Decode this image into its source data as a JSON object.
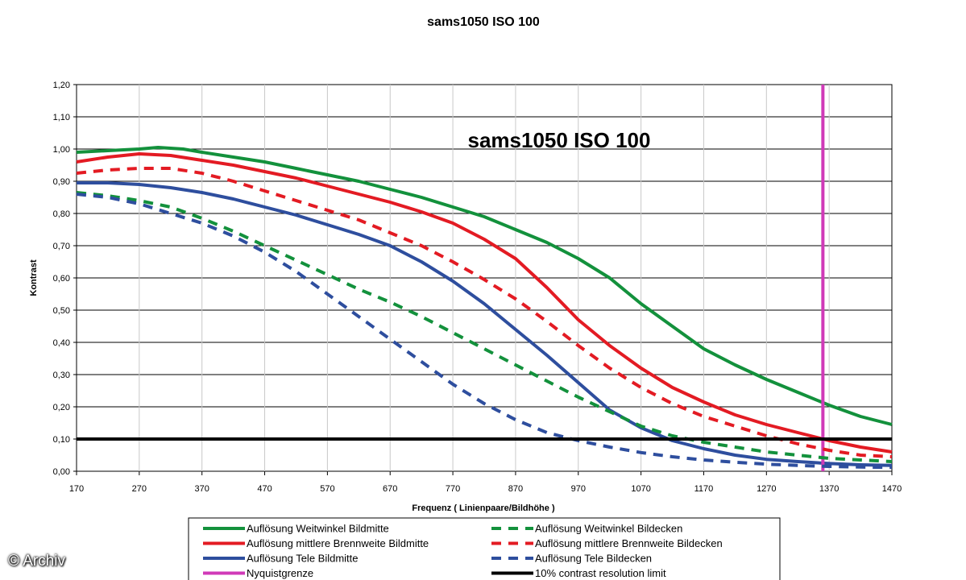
{
  "chart_data": {
    "type": "line",
    "title": "sams1050 ISO 100",
    "inner_title": "sams1050 ISO 100",
    "xlabel": "Frequenz ( Linienpaare/Bildhöhe )",
    "ylabel": "Kontrast",
    "xlim": [
      170,
      1470
    ],
    "ylim": [
      0,
      1.2
    ],
    "x_ticks": [
      "170",
      "270",
      "370",
      "470",
      "570",
      "670",
      "770",
      "870",
      "970",
      "1070",
      "1170",
      "1270",
      "1370",
      "1470"
    ],
    "y_ticks": [
      "0,00",
      "0,10",
      "0,20",
      "0,30",
      "0,40",
      "0,50",
      "0,60",
      "0,70",
      "0,80",
      "0,90",
      "1,00",
      "1,10",
      "1,20"
    ],
    "grid": "horizontal",
    "legend_position": "bottom",
    "series": [
      {
        "name": "Auflösung Weitwinkel Bildmitte",
        "color": "#13913c",
        "style": "solid",
        "x": [
          170,
          220,
          270,
          300,
          340,
          370,
          420,
          470,
          520,
          570,
          620,
          670,
          720,
          770,
          820,
          870,
          920,
          970,
          1020,
          1070,
          1120,
          1170,
          1220,
          1270,
          1320,
          1370,
          1420,
          1470
        ],
        "y": [
          0.99,
          0.995,
          1.0,
          1.005,
          1.0,
          0.99,
          0.975,
          0.96,
          0.94,
          0.92,
          0.9,
          0.875,
          0.85,
          0.82,
          0.79,
          0.75,
          0.71,
          0.66,
          0.6,
          0.52,
          0.45,
          0.38,
          0.33,
          0.285,
          0.245,
          0.205,
          0.17,
          0.145
        ]
      },
      {
        "name": "Auflösung mittlere Brennweite Bildmitte",
        "color": "#e31b23",
        "style": "solid",
        "x": [
          170,
          220,
          270,
          320,
          370,
          420,
          470,
          520,
          570,
          620,
          670,
          720,
          770,
          820,
          870,
          920,
          970,
          1020,
          1070,
          1120,
          1170,
          1220,
          1270,
          1320,
          1370,
          1420,
          1470
        ],
        "y": [
          0.96,
          0.975,
          0.985,
          0.98,
          0.965,
          0.95,
          0.93,
          0.91,
          0.885,
          0.86,
          0.835,
          0.805,
          0.77,
          0.72,
          0.66,
          0.57,
          0.47,
          0.39,
          0.32,
          0.26,
          0.215,
          0.175,
          0.145,
          0.12,
          0.095,
          0.075,
          0.06
        ]
      },
      {
        "name": "Auflösung Tele Bildmitte",
        "color": "#2e4e9e",
        "style": "solid",
        "x": [
          170,
          220,
          270,
          320,
          370,
          420,
          470,
          520,
          570,
          620,
          670,
          720,
          770,
          820,
          870,
          920,
          970,
          1020,
          1070,
          1120,
          1170,
          1220,
          1270,
          1320,
          1370,
          1420,
          1470
        ],
        "y": [
          0.895,
          0.895,
          0.89,
          0.88,
          0.865,
          0.845,
          0.82,
          0.795,
          0.765,
          0.735,
          0.7,
          0.65,
          0.59,
          0.52,
          0.44,
          0.36,
          0.275,
          0.19,
          0.135,
          0.095,
          0.07,
          0.05,
          0.037,
          0.03,
          0.024,
          0.02,
          0.018
        ]
      },
      {
        "name": "Nyquistgrenze",
        "color": "#d03ab8",
        "style": "vertical",
        "x_value": 1360
      },
      {
        "name": "Auflösung Weitwinkel Bildecken",
        "color": "#13913c",
        "style": "dashed",
        "x": [
          170,
          220,
          270,
          320,
          370,
          420,
          470,
          520,
          570,
          620,
          670,
          720,
          770,
          820,
          870,
          920,
          970,
          1020,
          1070,
          1120,
          1170,
          1220,
          1270,
          1320,
          1370,
          1420,
          1470
        ],
        "y": [
          0.865,
          0.855,
          0.84,
          0.82,
          0.785,
          0.745,
          0.7,
          0.655,
          0.61,
          0.565,
          0.525,
          0.48,
          0.43,
          0.38,
          0.33,
          0.28,
          0.23,
          0.185,
          0.14,
          0.11,
          0.09,
          0.075,
          0.06,
          0.05,
          0.04,
          0.035,
          0.03
        ]
      },
      {
        "name": "Auflösung mittlere Brennweite Bildecken",
        "color": "#e31b23",
        "style": "dashed",
        "x": [
          170,
          220,
          270,
          320,
          370,
          420,
          470,
          520,
          570,
          620,
          670,
          720,
          770,
          820,
          870,
          920,
          970,
          1020,
          1070,
          1120,
          1170,
          1220,
          1270,
          1320,
          1370,
          1420,
          1470
        ],
        "y": [
          0.925,
          0.935,
          0.94,
          0.94,
          0.925,
          0.9,
          0.87,
          0.84,
          0.81,
          0.78,
          0.74,
          0.7,
          0.65,
          0.595,
          0.535,
          0.465,
          0.39,
          0.32,
          0.26,
          0.21,
          0.17,
          0.14,
          0.11,
          0.085,
          0.065,
          0.05,
          0.045
        ]
      },
      {
        "name": "Auflösung Tele Bildecken",
        "color": "#2e4e9e",
        "style": "dashed",
        "x": [
          170,
          220,
          270,
          320,
          370,
          420,
          470,
          520,
          570,
          620,
          670,
          720,
          770,
          820,
          870,
          920,
          970,
          1020,
          1070,
          1120,
          1170,
          1220,
          1270,
          1320,
          1370,
          1420,
          1470
        ],
        "y": [
          0.86,
          0.85,
          0.83,
          0.8,
          0.77,
          0.73,
          0.68,
          0.62,
          0.55,
          0.48,
          0.41,
          0.34,
          0.27,
          0.21,
          0.16,
          0.12,
          0.095,
          0.075,
          0.058,
          0.045,
          0.035,
          0.028,
          0.022,
          0.018,
          0.015,
          0.013,
          0.012
        ]
      },
      {
        "name": "10% contrast resolution limit",
        "color": "#000000",
        "style": "horizontal",
        "y_value": 0.1
      }
    ]
  },
  "watermark": "© Archiv"
}
